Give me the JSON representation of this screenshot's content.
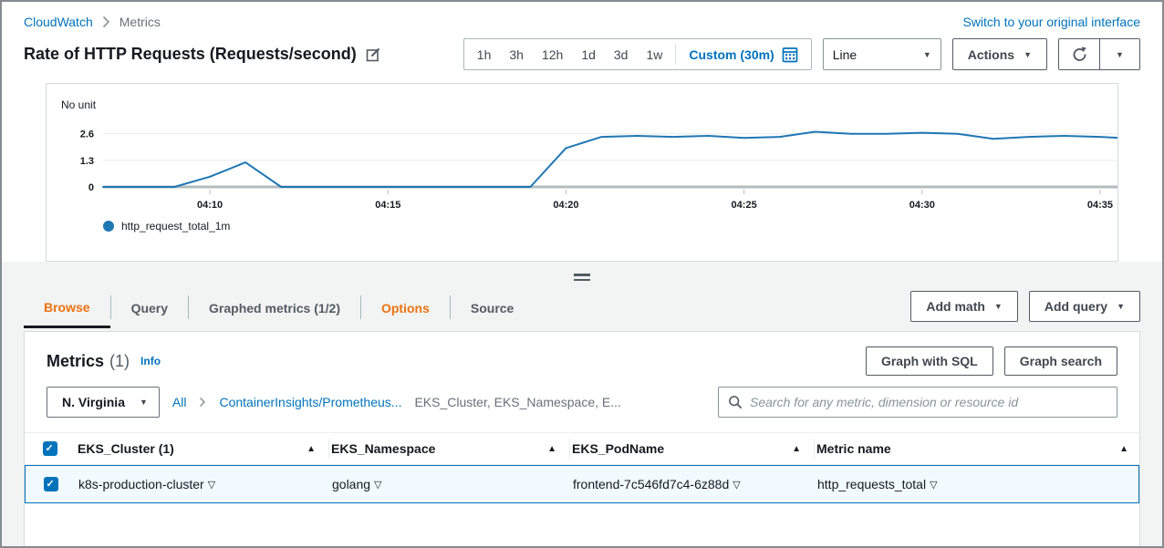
{
  "colors": {
    "accent_blue": "#0073bb",
    "active_tab_orange": "#ec7211",
    "chart_line_blue": "#1f77b4",
    "selected_row_bg": "#f1faff",
    "selected_row_border": "#0073bb"
  },
  "breadcrumb": {
    "root": "CloudWatch",
    "current": "Metrics"
  },
  "top_right": {
    "switch_link": "Switch to your original interface"
  },
  "title_bar": {
    "title": "Rate of HTTP Requests (Requests/second)"
  },
  "time_controls": {
    "ranges": [
      "1h",
      "3h",
      "12h",
      "1d",
      "3d",
      "1w"
    ],
    "custom": "Custom (30m)",
    "chart_type": "Line",
    "actions": "Actions"
  },
  "chart_data": {
    "type": "line",
    "title": "Rate of HTTP Requests (Requests/second)",
    "unit_label": "No unit",
    "grid": true,
    "legend_position": "bottom-left",
    "ylim": [
      0,
      2.9
    ],
    "yticks": [
      0,
      1.3,
      2.6
    ],
    "x_domain": [
      "04:07",
      "04:36"
    ],
    "x_ticks": [
      "04:10",
      "04:15",
      "04:20",
      "04:25",
      "04:30",
      "04:35"
    ],
    "x": [
      "04:07",
      "04:08",
      "04:09",
      "04:10",
      "04:11",
      "04:12",
      "04:13",
      "04:14",
      "04:15",
      "04:16",
      "04:17",
      "04:18",
      "04:19",
      "04:20",
      "04:21",
      "04:22",
      "04:23",
      "04:24",
      "04:25",
      "04:26",
      "04:27",
      "04:28",
      "04:29",
      "04:30",
      "04:31",
      "04:32",
      "04:33",
      "04:34",
      "04:35",
      "04:36"
    ],
    "series": [
      {
        "name": "http_request_total_1m",
        "color": "#1f77b4",
        "values": [
          0,
          0,
          0,
          0.5,
          1.2,
          0,
          0,
          0,
          0,
          0,
          0,
          0,
          0,
          1.9,
          2.45,
          2.5,
          2.45,
          2.5,
          2.4,
          2.45,
          2.7,
          2.6,
          2.6,
          2.65,
          2.6,
          2.35,
          2.45,
          2.5,
          2.45,
          2.35
        ]
      }
    ]
  },
  "tabs": {
    "browse": "Browse",
    "query": "Query",
    "graphed": "Graphed metrics (1/2)",
    "options": "Options",
    "source": "Source"
  },
  "query_buttons": {
    "add_math": "Add math",
    "add_query": "Add query"
  },
  "metrics_panel": {
    "title": "Metrics",
    "count": "(1)",
    "info_link": "Info",
    "graph_sql": "Graph with SQL",
    "graph_search": "Graph search",
    "region": "N. Virginia",
    "browse_path": {
      "all": "All",
      "namespace": "ContainerInsights/Prometheus...",
      "dimensions": "EKS_Cluster, EKS_Namespace, E..."
    },
    "search_placeholder": "Search for any metric, dimension or resource id"
  },
  "table": {
    "headers": [
      "EKS_Cluster (1)",
      "EKS_Namespace",
      "EKS_PodName",
      "Metric name"
    ],
    "rows": [
      [
        "k8s-production-cluster",
        "golang",
        "frontend-7c546fd7c4-6z88d",
        "http_requests_total"
      ]
    ]
  }
}
